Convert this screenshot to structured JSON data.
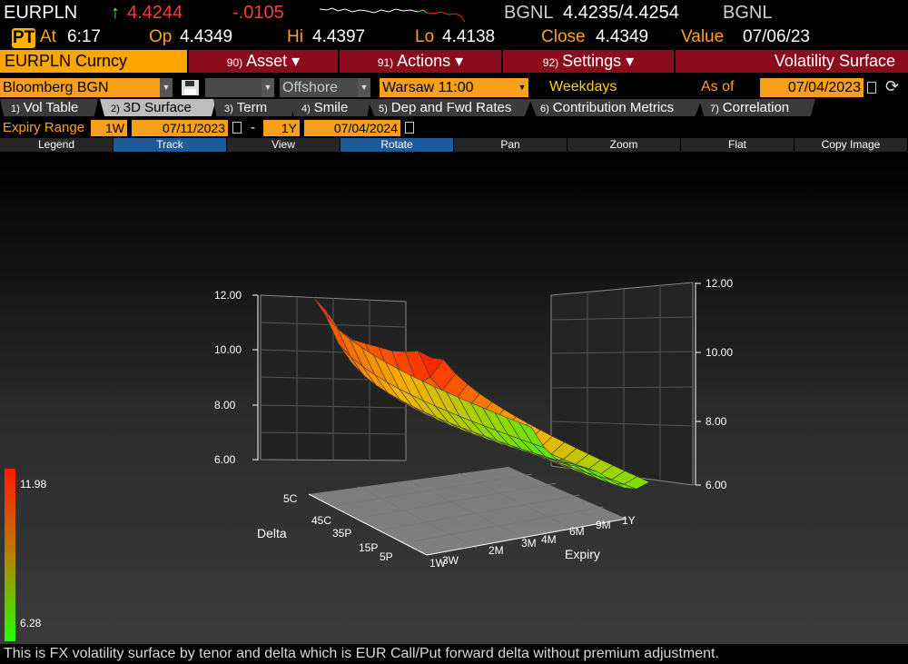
{
  "quote": {
    "ticker": "EURPLN",
    "arrow": "↑",
    "last": "4.4244",
    "change": "-.0105",
    "source": "BGNL",
    "bid_ask": "4.4235/4.4254",
    "source2": "BGNL"
  },
  "stats": {
    "badge": "PT",
    "at_label": "At",
    "time": "6:17",
    "op_label": "Op",
    "op": "4.4349",
    "hi_label": "Hi",
    "hi": "4.4397",
    "lo_label": "Lo",
    "lo": "4.4138",
    "close_label": "Close",
    "close": "4.4349",
    "value_label": "Value",
    "value": "07/06/23"
  },
  "menubar": {
    "security": "EURPLN Curncy",
    "items": [
      {
        "num": "90)",
        "label": "Asset ▾"
      },
      {
        "num": "91)",
        "label": "Actions ▾"
      },
      {
        "num": "92)",
        "label": "Settings ▾"
      }
    ],
    "title": "Volatility Surface"
  },
  "source": {
    "provider": "Bloomberg BGN",
    "offshore": "Offshore",
    "cut": "Warsaw 11:00",
    "days": "Weekdays",
    "asof_label": "As of",
    "asof": "07/04/2023"
  },
  "tabs": [
    {
      "n": "1)",
      "label": "Vol Table"
    },
    {
      "n": "2)",
      "label": "3D Surface"
    },
    {
      "n": "3)",
      "label": "Term"
    },
    {
      "n": "4)",
      "label": "Smile"
    },
    {
      "n": "5)",
      "label": "Dep and Fwd Rates"
    },
    {
      "n": "6)",
      "label": "Contribution Metrics"
    },
    {
      "n": "7)",
      "label": "Correlation"
    }
  ],
  "expiry": {
    "label": "Expiry Range",
    "from_tenor": "1W",
    "from_date": "07/11/2023",
    "dash": "-",
    "to_tenor": "1Y",
    "to_date": "07/04/2024"
  },
  "toolbar": [
    "Legend",
    "Track",
    "View",
    "Rotate",
    "Pan",
    "Zoom",
    "Flat",
    "Copy Image"
  ],
  "chart_data": {
    "type": "surface",
    "z_ticks_left": [
      "12.00",
      "10.00",
      "8.00",
      "6.00"
    ],
    "z_ticks_right": [
      "12.00",
      "10.00",
      "8.00",
      "6.00"
    ],
    "zlim": [
      6,
      12
    ],
    "delta_label": "Delta",
    "delta_ticks": [
      "5C",
      "45C",
      "35P",
      "15P",
      "5P"
    ],
    "expiry_label": "Expiry",
    "expiry_ticks": [
      "1W",
      "3W",
      "2M",
      "3M",
      "4M",
      "6M",
      "9M",
      "1Y"
    ],
    "legend_max": "11.98",
    "legend_min": "6.28",
    "colors": {
      "high": "#ff1a00",
      "mid": "#ffb000",
      "low": "#22ff00"
    }
  },
  "footer": "This is FX volatility surface by tenor and delta which is EUR Call/Put forward delta without premium adjustment."
}
